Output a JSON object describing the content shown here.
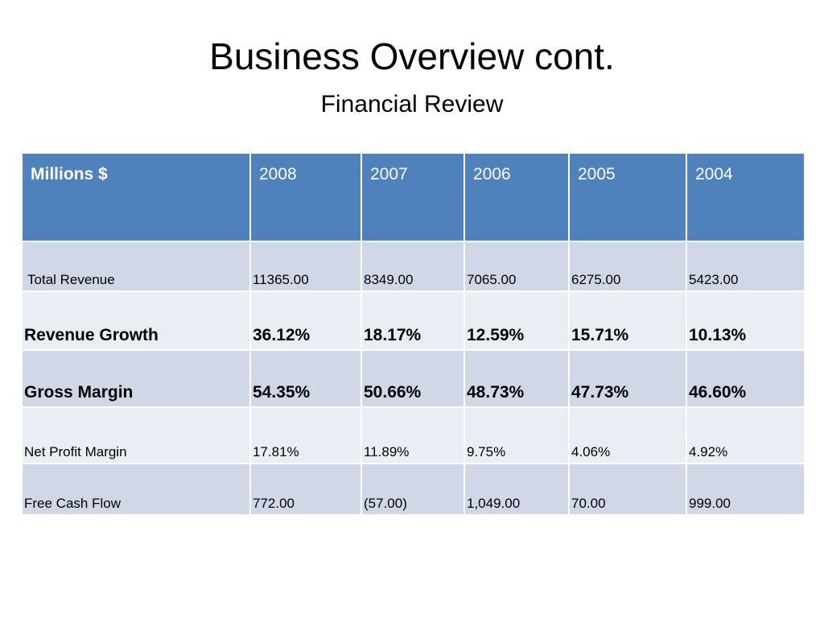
{
  "slide": {
    "title": "Business Overview cont.",
    "subtitle": "Financial Review"
  },
  "table": {
    "header": [
      "Millions $",
      "2008",
      "2007",
      "2006",
      "2005",
      "2004"
    ],
    "rows": [
      {
        "label": "Total Revenue",
        "values": [
          "11365.00",
          "8349.00",
          "7065.00",
          "6275.00",
          "5423.00"
        ]
      },
      {
        "label": "Revenue Growth",
        "values": [
          "36.12%",
          "18.17%",
          "12.59%",
          "15.71%",
          "10.13%"
        ]
      },
      {
        "label": "Gross Margin",
        "values": [
          "54.35%",
          "50.66%",
          "48.73%",
          "47.73%",
          "46.60%"
        ]
      },
      {
        "label": "Net Profit Margin",
        "values": [
          "17.81%",
          "11.89%",
          "9.75%",
          "4.06%",
          "4.92%"
        ]
      },
      {
        "label": "Free Cash Flow",
        "values": [
          "772.00",
          "(57.00)",
          "1,049.00",
          "70.00",
          "999.00"
        ]
      }
    ]
  },
  "colors": {
    "header_bg": "#4f81bd",
    "row_odd_bg": "#d0d8e8",
    "row_even_bg": "#e9edf4"
  }
}
